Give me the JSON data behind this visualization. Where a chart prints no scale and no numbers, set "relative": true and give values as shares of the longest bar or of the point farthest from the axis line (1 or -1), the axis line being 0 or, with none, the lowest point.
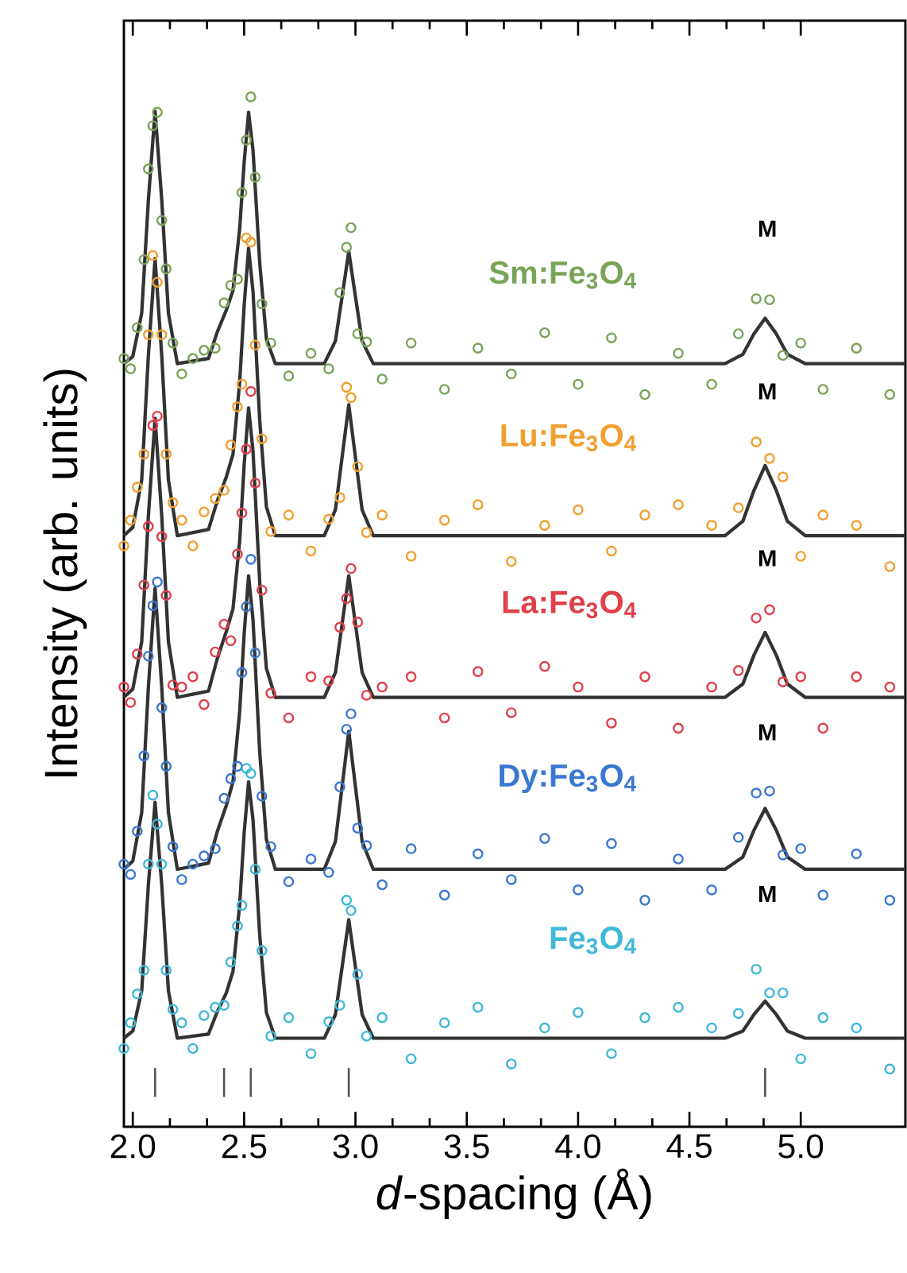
{
  "chart_data": {
    "type": "scatter",
    "relative": true,
    "xlabel": "*d*-spacing (Å)",
    "ylabel": "Intensity (arb. units)",
    "xlim": [
      1.96,
      5.47
    ],
    "xticks": [
      {
        "value": 2.0,
        "label": "2.0"
      },
      {
        "value": 2.5,
        "label": "2.5"
      },
      {
        "value": 3.0,
        "label": "3.0"
      },
      {
        "value": 3.5,
        "label": "3.5"
      },
      {
        "value": 4.0,
        "label": "4.0"
      },
      {
        "value": 4.5,
        "label": "4.5"
      },
      {
        "value": 5.0,
        "label": "5.0"
      }
    ],
    "tick_labels": "x",
    "grid": false,
    "annotations": [
      "M",
      "M",
      "M",
      "M",
      "M"
    ],
    "series": [
      {
        "name": "Sm:Fe$_{3}$O$_{4}$",
        "marker": "circle",
        "color": "#7aa35a",
        "x": [
          1.96,
          1.99,
          2.02,
          2.05,
          2.07,
          2.09,
          2.11,
          2.13,
          2.15,
          2.18,
          2.22,
          2.27,
          2.32,
          2.37,
          2.41,
          2.44,
          2.47,
          2.49,
          2.51,
          2.53,
          2.55,
          2.58,
          2.62,
          2.7,
          2.8,
          2.88,
          2.93,
          2.96,
          2.98,
          3.01,
          3.05,
          3.12,
          3.25,
          3.4,
          3.55,
          3.7,
          3.85,
          4.0,
          4.15,
          4.3,
          4.45,
          4.6,
          4.72,
          4.8,
          4.86,
          4.92,
          5.0,
          5.1,
          5.25,
          5.4
        ],
        "values": [
          0.746,
          0.736,
          0.776,
          0.842,
          0.93,
          0.972,
          0.985,
          0.88,
          0.833,
          0.761,
          0.731,
          0.746,
          0.754,
          0.756,
          0.8,
          0.817,
          0.823,
          0.907,
          0.958,
          1.0,
          0.922,
          0.799,
          0.761,
          0.729,
          0.751,
          0.736,
          0.81,
          0.854,
          0.873,
          0.77,
          0.762,
          0.726,
          0.761,
          0.716,
          0.756,
          0.731,
          0.771,
          0.721,
          0.766,
          0.711,
          0.751,
          0.721,
          0.77,
          0.804,
          0.803,
          0.749,
          0.761,
          0.716,
          0.756,
          0.711
        ]
      },
      {
        "name": "Lu:Fe$_{3}$O$_{4}$",
        "marker": "circle",
        "color": "#f0a030",
        "x": [
          1.96,
          1.99,
          2.02,
          2.05,
          2.07,
          2.09,
          2.11,
          2.13,
          2.15,
          2.18,
          2.22,
          2.27,
          2.32,
          2.37,
          2.41,
          2.44,
          2.47,
          2.49,
          2.51,
          2.53,
          2.55,
          2.58,
          2.62,
          2.7,
          2.8,
          2.88,
          2.93,
          2.96,
          2.98,
          3.01,
          3.05,
          3.12,
          3.25,
          3.4,
          3.55,
          3.7,
          3.85,
          4.0,
          4.15,
          4.3,
          4.45,
          4.6,
          4.72,
          4.8,
          4.86,
          4.92,
          5.0,
          5.1,
          5.25,
          5.4
        ],
        "values": [
          0.564,
          0.589,
          0.621,
          0.653,
          0.769,
          0.846,
          0.82,
          0.769,
          0.653,
          0.606,
          0.589,
          0.564,
          0.597,
          0.61,
          0.618,
          0.662,
          0.699,
          0.721,
          0.863,
          0.859,
          0.759,
          0.668,
          0.578,
          0.594,
          0.559,
          0.59,
          0.611,
          0.718,
          0.708,
          0.641,
          0.577,
          0.594,
          0.554,
          0.589,
          0.604,
          0.549,
          0.584,
          0.599,
          0.559,
          0.594,
          0.604,
          0.584,
          0.601,
          0.665,
          0.649,
          0.631,
          0.554,
          0.594,
          0.584,
          0.544
        ]
      },
      {
        "name": "La:Fe$_{3}$O$_{4}$",
        "marker": "circle",
        "color": "#e0404a",
        "x": [
          1.96,
          1.99,
          2.02,
          2.05,
          2.07,
          2.09,
          2.11,
          2.13,
          2.15,
          2.18,
          2.22,
          2.27,
          2.32,
          2.37,
          2.41,
          2.44,
          2.47,
          2.49,
          2.51,
          2.53,
          2.55,
          2.58,
          2.62,
          2.7,
          2.8,
          2.88,
          2.93,
          2.96,
          2.98,
          3.01,
          3.05,
          3.12,
          3.25,
          3.4,
          3.55,
          3.7,
          3.85,
          4.0,
          4.15,
          4.3,
          4.45,
          4.6,
          4.72,
          4.8,
          4.86,
          4.92,
          5.0,
          5.1,
          5.25,
          5.4
        ],
        "values": [
          0.427,
          0.412,
          0.459,
          0.526,
          0.583,
          0.681,
          0.69,
          0.573,
          0.516,
          0.429,
          0.427,
          0.437,
          0.41,
          0.461,
          0.488,
          0.472,
          0.556,
          0.596,
          0.658,
          0.714,
          0.625,
          0.521,
          0.421,
          0.397,
          0.437,
          0.433,
          0.485,
          0.513,
          0.542,
          0.49,
          0.419,
          0.427,
          0.437,
          0.397,
          0.442,
          0.402,
          0.447,
          0.427,
          0.392,
          0.437,
          0.387,
          0.427,
          0.443,
          0.494,
          0.502,
          0.432,
          0.437,
          0.387,
          0.437,
          0.427
        ]
      },
      {
        "name": "Dy:Fe$_{3}$O$_{4}$",
        "marker": "circle",
        "color": "#3a78d0",
        "x": [
          1.96,
          1.99,
          2.02,
          2.05,
          2.07,
          2.09,
          2.11,
          2.13,
          2.15,
          2.18,
          2.22,
          2.27,
          2.32,
          2.37,
          2.41,
          2.44,
          2.47,
          2.49,
          2.51,
          2.53,
          2.55,
          2.58,
          2.62,
          2.7,
          2.8,
          2.88,
          2.93,
          2.96,
          2.98,
          3.01,
          3.05,
          3.12,
          3.25,
          3.4,
          3.55,
          3.7,
          3.85,
          4.0,
          4.15,
          4.3,
          4.45,
          4.6,
          4.72,
          4.8,
          4.86,
          4.92,
          5.0,
          5.1,
          5.25,
          5.4
        ],
        "values": [
          0.255,
          0.245,
          0.287,
          0.36,
          0.457,
          0.506,
          0.529,
          0.407,
          0.35,
          0.272,
          0.24,
          0.255,
          0.263,
          0.27,
          0.319,
          0.338,
          0.35,
          0.441,
          0.505,
          0.551,
          0.46,
          0.321,
          0.272,
          0.238,
          0.26,
          0.247,
          0.33,
          0.386,
          0.401,
          0.29,
          0.273,
          0.235,
          0.27,
          0.225,
          0.265,
          0.24,
          0.28,
          0.23,
          0.275,
          0.22,
          0.26,
          0.23,
          0.281,
          0.324,
          0.326,
          0.264,
          0.27,
          0.225,
          0.265,
          0.22
        ]
      },
      {
        "name": "Fe$_{3}$O$_{4}$",
        "marker": "circle",
        "color": "#40b8d8",
        "x": [
          1.96,
          1.99,
          2.02,
          2.05,
          2.07,
          2.09,
          2.11,
          2.13,
          2.15,
          2.18,
          2.22,
          2.27,
          2.32,
          2.37,
          2.41,
          2.44,
          2.47,
          2.49,
          2.51,
          2.53,
          2.55,
          2.58,
          2.62,
          2.7,
          2.8,
          2.88,
          2.93,
          2.96,
          2.98,
          3.01,
          3.05,
          3.12,
          3.25,
          3.4,
          3.55,
          3.7,
          3.85,
          4.0,
          4.15,
          4.3,
          4.45,
          4.6,
          4.72,
          4.8,
          4.86,
          4.92,
          5.0,
          5.1,
          5.25,
          5.4
        ],
        "values": [
          0.076,
          0.101,
          0.129,
          0.152,
          0.255,
          0.322,
          0.294,
          0.255,
          0.152,
          0.114,
          0.101,
          0.076,
          0.108,
          0.116,
          0.118,
          0.16,
          0.195,
          0.215,
          0.348,
          0.343,
          0.25,
          0.171,
          0.088,
          0.106,
          0.071,
          0.102,
          0.118,
          0.22,
          0.21,
          0.148,
          0.088,
          0.106,
          0.066,
          0.101,
          0.116,
          0.061,
          0.096,
          0.111,
          0.071,
          0.106,
          0.116,
          0.096,
          0.11,
          0.153,
          0.13,
          0.13,
          0.066,
          0.106,
          0.096,
          0.056
        ]
      },
      {
        "type": "line",
        "marker": "none",
        "line_style": "solid",
        "color": "#333333",
        "x": [
          1.96,
          2.0,
          2.04,
          2.07,
          2.1,
          2.13,
          2.16,
          2.2,
          2.34,
          2.38,
          2.42,
          2.45,
          2.48,
          2.5,
          2.52,
          2.54,
          2.57,
          2.6,
          2.64,
          2.86,
          2.91,
          2.94,
          2.97,
          3.0,
          3.03,
          3.08,
          4.66,
          4.74,
          4.79,
          4.84,
          4.89,
          4.94,
          5.02,
          5.47
        ],
        "values": [
          0.741,
          0.748,
          0.79,
          0.9,
          0.986,
          0.9,
          0.79,
          0.741,
          0.746,
          0.772,
          0.793,
          0.812,
          0.872,
          0.936,
          0.985,
          0.948,
          0.839,
          0.765,
          0.741,
          0.741,
          0.763,
          0.806,
          0.85,
          0.806,
          0.763,
          0.741,
          0.741,
          0.75,
          0.77,
          0.785,
          0.77,
          0.75,
          0.741,
          0.741
        ]
      },
      {
        "type": "line",
        "marker": "none",
        "line_style": "solid",
        "color": "#333333",
        "x": [
          1.96,
          2.0,
          2.04,
          2.07,
          2.1,
          2.13,
          2.16,
          2.2,
          2.34,
          2.38,
          2.42,
          2.45,
          2.48,
          2.5,
          2.52,
          2.54,
          2.57,
          2.6,
          2.64,
          2.86,
          2.91,
          2.94,
          2.97,
          3.0,
          3.03,
          3.08,
          4.66,
          4.74,
          4.79,
          4.84,
          4.89,
          4.94,
          5.02,
          5.47
        ],
        "values": [
          0.574,
          0.582,
          0.628,
          0.749,
          0.843,
          0.749,
          0.628,
          0.574,
          0.58,
          0.608,
          0.631,
          0.653,
          0.723,
          0.797,
          0.853,
          0.811,
          0.686,
          0.602,
          0.574,
          0.574,
          0.599,
          0.65,
          0.701,
          0.65,
          0.599,
          0.574,
          0.574,
          0.588,
          0.618,
          0.642,
          0.618,
          0.588,
          0.574,
          0.574
        ]
      },
      {
        "type": "line",
        "marker": "none",
        "line_style": "solid",
        "color": "#333333",
        "x": [
          1.96,
          2.0,
          2.04,
          2.07,
          2.1,
          2.13,
          2.16,
          2.2,
          2.34,
          2.38,
          2.42,
          2.45,
          2.48,
          2.5,
          2.52,
          2.54,
          2.57,
          2.6,
          2.64,
          2.86,
          2.91,
          2.94,
          2.97,
          3.0,
          3.03,
          3.08,
          4.66,
          4.74,
          4.79,
          4.84,
          4.89,
          4.94,
          5.02,
          5.47
        ],
        "values": [
          0.417,
          0.425,
          0.471,
          0.593,
          0.688,
          0.593,
          0.471,
          0.417,
          0.423,
          0.455,
          0.481,
          0.503,
          0.569,
          0.642,
          0.698,
          0.656,
          0.529,
          0.445,
          0.417,
          0.417,
          0.441,
          0.488,
          0.535,
          0.488,
          0.441,
          0.417,
          0.417,
          0.43,
          0.458,
          0.48,
          0.458,
          0.43,
          0.417,
          0.417
        ]
      },
      {
        "type": "line",
        "marker": "none",
        "line_style": "solid",
        "color": "#333333",
        "x": [
          1.96,
          2.0,
          2.04,
          2.07,
          2.1,
          2.13,
          2.16,
          2.2,
          2.34,
          2.38,
          2.42,
          2.45,
          2.48,
          2.5,
          2.52,
          2.54,
          2.57,
          2.6,
          2.64,
          2.86,
          2.91,
          2.94,
          2.97,
          3.0,
          3.03,
          3.08,
          4.66,
          4.74,
          4.79,
          4.84,
          4.89,
          4.94,
          5.02,
          5.47
        ],
        "values": [
          0.25,
          0.258,
          0.305,
          0.427,
          0.523,
          0.427,
          0.305,
          0.25,
          0.256,
          0.287,
          0.312,
          0.335,
          0.403,
          0.478,
          0.535,
          0.492,
          0.364,
          0.279,
          0.25,
          0.25,
          0.277,
          0.33,
          0.384,
          0.33,
          0.277,
          0.25,
          0.25,
          0.262,
          0.288,
          0.309,
          0.288,
          0.262,
          0.25,
          0.25
        ]
      },
      {
        "type": "line",
        "marker": "none",
        "line_style": "solid",
        "color": "#333333",
        "x": [
          1.96,
          2.0,
          2.04,
          2.07,
          2.1,
          2.13,
          2.16,
          2.2,
          2.34,
          2.38,
          2.42,
          2.45,
          2.48,
          2.5,
          2.52,
          2.54,
          2.57,
          2.6,
          2.64,
          2.86,
          2.91,
          2.94,
          2.97,
          3.0,
          3.03,
          3.08,
          4.66,
          4.74,
          4.79,
          4.84,
          4.89,
          4.94,
          5.02,
          5.47
        ],
        "values": [
          0.086,
          0.093,
          0.132,
          0.235,
          0.315,
          0.235,
          0.132,
          0.086,
          0.09,
          0.112,
          0.13,
          0.151,
          0.216,
          0.285,
          0.335,
          0.298,
          0.186,
          0.111,
          0.086,
          0.086,
          0.109,
          0.155,
          0.201,
          0.155,
          0.109,
          0.086,
          0.086,
          0.093,
          0.109,
          0.122,
          0.109,
          0.093,
          0.086,
          0.086
        ]
      },
      {
        "type": "line",
        "marker": "none",
        "line_style": "solid",
        "color": "#555555",
        "x": [
          2.1,
          2.1
        ],
        "values": [
          0.029,
          0.057
        ]
      },
      {
        "type": "line",
        "marker": "none",
        "line_style": "solid",
        "color": "#555555",
        "x": [
          2.41,
          2.41
        ],
        "values": [
          0.029,
          0.057
        ]
      },
      {
        "type": "line",
        "marker": "none",
        "line_style": "solid",
        "color": "#555555",
        "x": [
          2.53,
          2.53
        ],
        "values": [
          0.029,
          0.057
        ]
      },
      {
        "type": "line",
        "marker": "none",
        "line_style": "solid",
        "color": "#555555",
        "x": [
          2.97,
          2.97
        ],
        "values": [
          0.029,
          0.057
        ]
      },
      {
        "type": "line",
        "marker": "none",
        "line_style": "solid",
        "color": "#555555",
        "x": [
          4.84,
          4.84
        ],
        "values": [
          0.029,
          0.057
        ]
      }
    ]
  }
}
